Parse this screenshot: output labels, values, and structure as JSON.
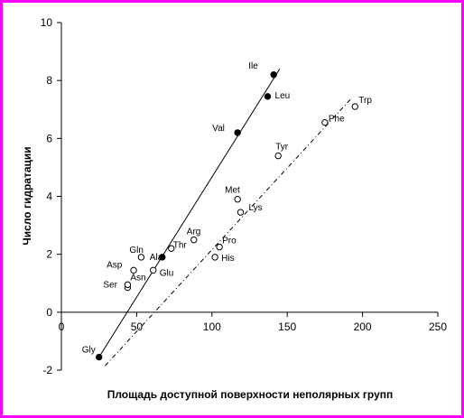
{
  "chart_data": {
    "type": "scatter",
    "xlabel": "Площадь доступной поверхности неполярных групп",
    "ylabel": "Число гидратации",
    "xlim": [
      0,
      250
    ],
    "ylim": [
      -2,
      10
    ],
    "xticks": [
      0,
      50,
      100,
      150,
      200,
      250
    ],
    "yticks": [
      -2,
      0,
      2,
      4,
      6,
      8,
      10
    ],
    "grid": false,
    "legend": "none",
    "series": [
      {
        "marker": "filled-circle",
        "line": "solid",
        "points": [
          {
            "label": "Gly",
            "x": 25,
            "y": -1.55
          },
          {
            "label": "Ala",
            "x": 67,
            "y": 1.9
          },
          {
            "label": "Val",
            "x": 117,
            "y": 6.2
          },
          {
            "label": "Leu",
            "x": 137,
            "y": 7.45
          },
          {
            "label": "Ile",
            "x": 141,
            "y": 8.2
          }
        ],
        "fit": [
          [
            25,
            -1.55
          ],
          [
            145,
            8.4
          ]
        ]
      },
      {
        "marker": "open-circle",
        "line": "dashed",
        "points": [
          {
            "label": "Ser",
            "x": 44,
            "y": 0.85
          },
          {
            "label": "Asn",
            "x": 44,
            "y": 0.95
          },
          {
            "label": "Asp",
            "x": 48,
            "y": 1.45
          },
          {
            "label": "Gln",
            "x": 53,
            "y": 1.9
          },
          {
            "label": "Glu",
            "x": 61,
            "y": 1.45
          },
          {
            "label": "Thr",
            "x": 73,
            "y": 2.2
          },
          {
            "label": "Arg",
            "x": 88,
            "y": 2.5
          },
          {
            "label": "His",
            "x": 102,
            "y": 1.9
          },
          {
            "label": "Pro",
            "x": 105,
            "y": 2.25
          },
          {
            "label": "Met",
            "x": 117,
            "y": 3.9
          },
          {
            "label": "Lys",
            "x": 119,
            "y": 3.45
          },
          {
            "label": "Tyr",
            "x": 144,
            "y": 5.4
          },
          {
            "label": "Phe",
            "x": 175,
            "y": 6.55
          },
          {
            "label": "Trp",
            "x": 195,
            "y": 7.1
          }
        ],
        "fit": [
          [
            29,
            -1.85
          ],
          [
            192,
            7.35
          ]
        ]
      }
    ]
  }
}
